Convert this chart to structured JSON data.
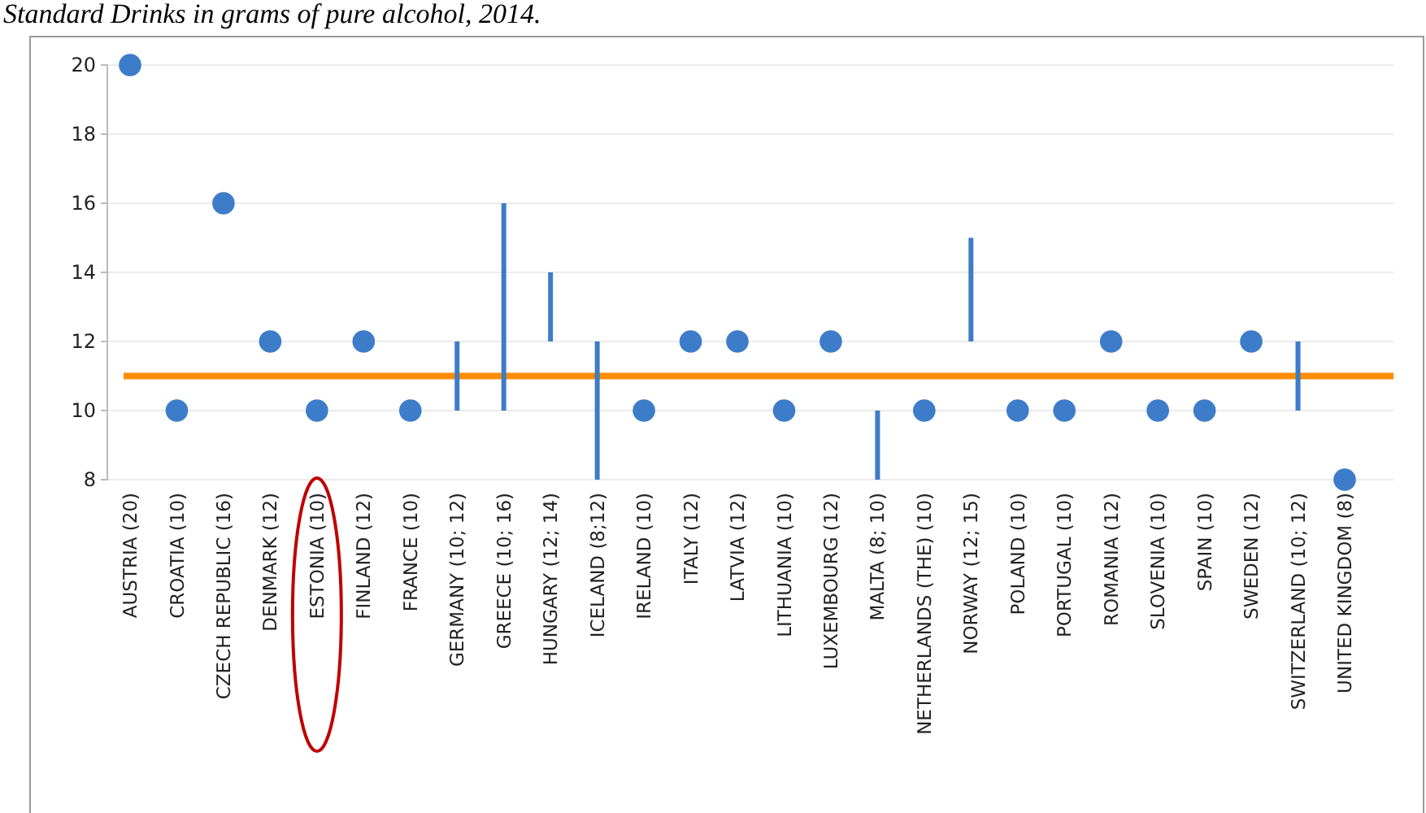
{
  "chart_data": {
    "type": "scatter",
    "title": "Standard Drinks in grams of pure alcohol, 2014.",
    "categories": [
      "AUSTRIA (20)",
      "CROATIA (10)",
      "CZECH REPUBLIC (16)",
      "DENMARK (12)",
      "ESTONIA (10)",
      "FINLAND (12)",
      "FRANCE (10)",
      "GERMANY (10; 12)",
      "GREECE (10; 16)",
      "HUNGARY (12; 14)",
      "ICELAND (8;12)",
      "IRELAND (10)",
      "ITALY (12)",
      "LATVIA (12)",
      "LITHUANIA (10)",
      "LUXEMBOURG (12)",
      "MALTA (8; 10)",
      "NETHERLANDS  (THE) (10)",
      "NORWAY (12; 15)",
      "POLAND (10)",
      "PORTUGAL (10)",
      "ROMANIA (12)",
      "SLOVENIA (10)",
      "SPAIN (10)",
      "SWEDEN (12)",
      "SWITZERLAND (10; 12)",
      "UNITED KINGDOM (8)"
    ],
    "series": [
      {
        "color": "#3d7cc9",
        "values": [
          20,
          10,
          16,
          12,
          10,
          12,
          10,
          null,
          null,
          null,
          null,
          10,
          12,
          12,
          10,
          12,
          null,
          10,
          null,
          10,
          10,
          12,
          10,
          10,
          12,
          null,
          8
        ]
      },
      {
        "type": "bar",
        "color": "#3d7cc9",
        "base": [
          null,
          null,
          null,
          null,
          null,
          null,
          null,
          10,
          10,
          12,
          8,
          null,
          null,
          null,
          null,
          null,
          8,
          null,
          12,
          null,
          null,
          null,
          null,
          null,
          null,
          10,
          null
        ],
        "values": [
          null,
          null,
          null,
          null,
          null,
          null,
          null,
          2,
          6,
          2,
          4,
          null,
          null,
          null,
          null,
          null,
          2,
          null,
          3,
          null,
          null,
          null,
          null,
          null,
          null,
          2,
          null
        ]
      }
    ],
    "ylim": [
      8,
      20
    ],
    "yticks": [
      8,
      10,
      12,
      14,
      16,
      18,
      20
    ],
    "grid": "y",
    "marker": "circle",
    "ref_lines": [
      {
        "axis": "y",
        "value": 11,
        "color": "#ff8c00"
      }
    ]
  }
}
